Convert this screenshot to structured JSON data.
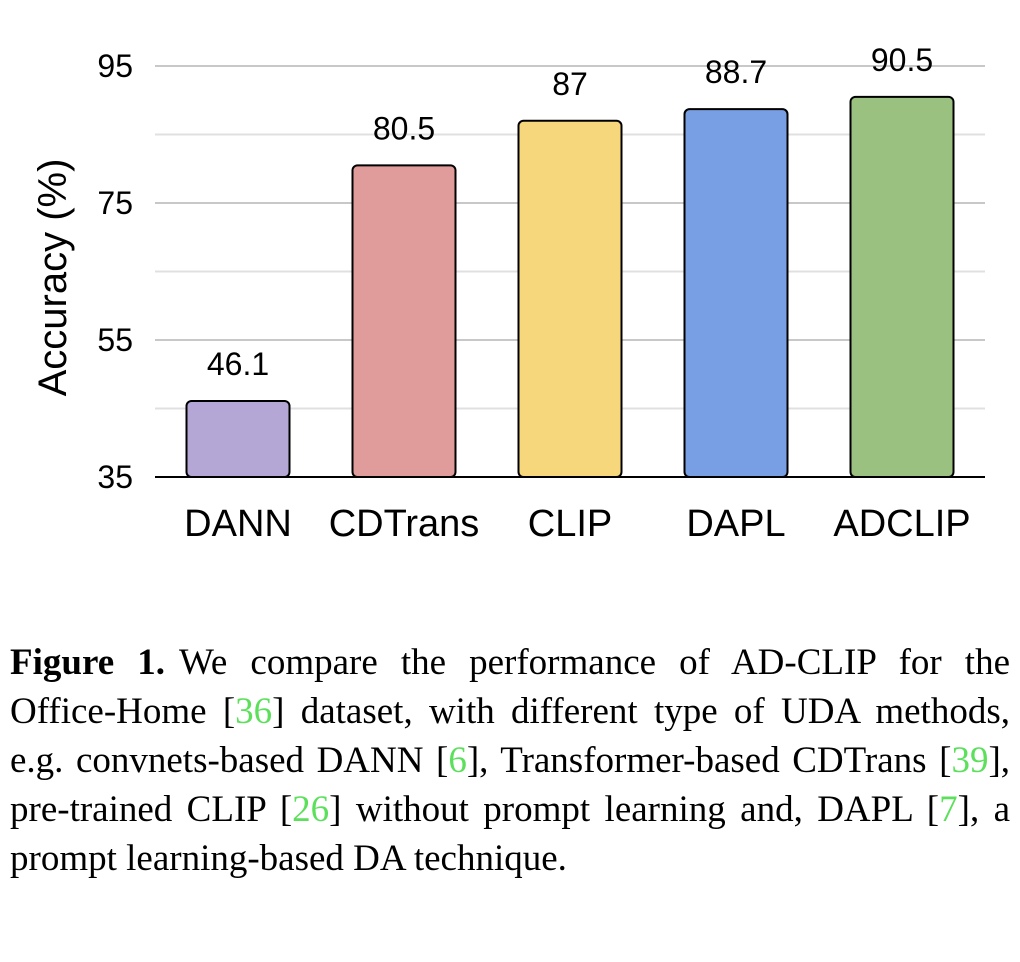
{
  "chart_data": {
    "type": "bar",
    "categories": [
      "DANN",
      "CDTrans",
      "CLIP",
      "DAPL",
      "ADCLIP"
    ],
    "values": [
      46.1,
      80.5,
      87,
      88.7,
      90.5
    ],
    "value_labels": [
      "46.1",
      "80.5",
      "87",
      "88.7",
      "90.5"
    ],
    "colors": [
      "#b4a7d6",
      "#e09c9a",
      "#f7d77c",
      "#789fe3",
      "#9bc180"
    ],
    "ylabel": "Accuracy (%)",
    "ylim": [
      35,
      95
    ],
    "yticks": [
      35,
      55,
      75,
      95
    ],
    "grid": true
  },
  "caption": {
    "label": "Figure 1.",
    "segments": [
      {
        "text": "We compare the performance of AD-CLIP for the Office-Home [",
        "ref": false
      },
      {
        "text": "36",
        "ref": true
      },
      {
        "text": "] dataset, with different type of UDA methods, e.g.  convnets-based DANN [",
        "ref": false
      },
      {
        "text": "6",
        "ref": true
      },
      {
        "text": "], Transformer-based CDTrans [",
        "ref": false
      },
      {
        "text": "39",
        "ref": true
      },
      {
        "text": "], pre-trained CLIP [",
        "ref": false
      },
      {
        "text": "26",
        "ref": true
      },
      {
        "text": "] without prompt learning and, DAPL [",
        "ref": false
      },
      {
        "text": "7",
        "ref": true
      },
      {
        "text": "], a prompt learning-based DA technique.",
        "ref": false
      }
    ]
  }
}
